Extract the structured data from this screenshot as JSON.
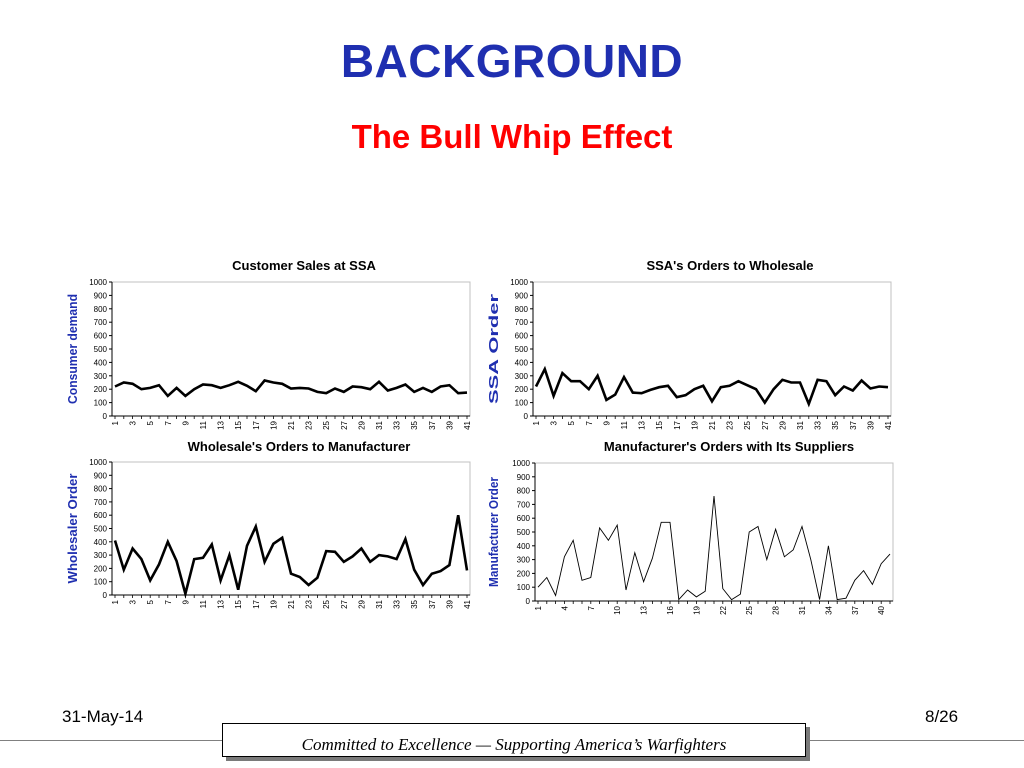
{
  "slide": {
    "title": "BACKGROUND",
    "subtitle": "The Bull Whip Effect",
    "date": "31-May-14",
    "page": "8/26",
    "footer": "Committed to Excellence — Supporting America’s Warfighters"
  },
  "colors": {
    "title": "#1f2fb0",
    "subtitle": "#ff0000",
    "axis_label": "#1f2fb0",
    "series": "#000000"
  },
  "chart_data": [
    {
      "type": "line",
      "title": "Customer Sales at SSA",
      "xlabel": "",
      "ylabel": "Consumer demand",
      "ylim": [
        0,
        1000
      ],
      "y_ticks": [
        0,
        100,
        200,
        300,
        400,
        500,
        600,
        700,
        800,
        900,
        1000
      ],
      "x": [
        1,
        2,
        3,
        4,
        5,
        6,
        7,
        8,
        9,
        10,
        11,
        12,
        13,
        14,
        15,
        16,
        17,
        18,
        19,
        20,
        21,
        22,
        23,
        24,
        25,
        26,
        27,
        28,
        29,
        30,
        31,
        32,
        33,
        34,
        35,
        36,
        37,
        38,
        39,
        40,
        41
      ],
      "x_tick_labels": [
        "1",
        "3",
        "5",
        "7",
        "9",
        "11",
        "13",
        "15",
        "17",
        "19",
        "21",
        "23",
        "25",
        "27",
        "29",
        "31",
        "33",
        "35",
        "37",
        "39",
        "41"
      ],
      "values": [
        220,
        250,
        240,
        200,
        210,
        230,
        150,
        210,
        150,
        200,
        235,
        230,
        210,
        230,
        255,
        225,
        185,
        265,
        250,
        240,
        205,
        210,
        205,
        180,
        170,
        205,
        180,
        220,
        215,
        200,
        255,
        190,
        210,
        235,
        180,
        210,
        180,
        220,
        230,
        170,
        175
      ],
      "line_width": "heavy"
    },
    {
      "type": "line",
      "title": "SSA's Orders to Wholesale",
      "xlabel": "",
      "ylabel": "SSA Order",
      "ylim": [
        0,
        1000
      ],
      "y_ticks": [
        0,
        100,
        200,
        300,
        400,
        500,
        600,
        700,
        800,
        900,
        1000
      ],
      "x": [
        1,
        2,
        3,
        4,
        5,
        6,
        7,
        8,
        9,
        10,
        11,
        12,
        13,
        14,
        15,
        16,
        17,
        18,
        19,
        20,
        21,
        22,
        23,
        24,
        25,
        26,
        27,
        28,
        29,
        30,
        31,
        32,
        33,
        34,
        35,
        36,
        37,
        38,
        39,
        40,
        41
      ],
      "x_tick_labels": [
        "1",
        "3",
        "5",
        "7",
        "9",
        "11",
        "13",
        "15",
        "17",
        "19",
        "21",
        "23",
        "25",
        "27",
        "29",
        "31",
        "33",
        "35",
        "37",
        "39",
        "41"
      ],
      "values": [
        220,
        350,
        150,
        320,
        260,
        260,
        200,
        300,
        120,
        160,
        290,
        175,
        170,
        195,
        215,
        225,
        140,
        155,
        200,
        225,
        110,
        215,
        225,
        260,
        230,
        200,
        100,
        200,
        270,
        250,
        250,
        90,
        270,
        260,
        155,
        220,
        190,
        265,
        205,
        220,
        215
      ],
      "line_width": "heavy"
    },
    {
      "type": "line",
      "title": "Wholesale's Orders to Manufacturer",
      "xlabel": "",
      "ylabel": "Wholesaler Order",
      "ylim": [
        0,
        1000
      ],
      "y_ticks": [
        0,
        100,
        200,
        300,
        400,
        500,
        600,
        700,
        800,
        900,
        1000
      ],
      "x": [
        1,
        2,
        3,
        4,
        5,
        6,
        7,
        8,
        9,
        10,
        11,
        12,
        13,
        14,
        15,
        16,
        17,
        18,
        19,
        20,
        21,
        22,
        23,
        24,
        25,
        26,
        27,
        28,
        29,
        30,
        31,
        32,
        33,
        34,
        35,
        36,
        37,
        38,
        39,
        40,
        41
      ],
      "x_tick_labels": [
        "1",
        "3",
        "5",
        "7",
        "9",
        "11",
        "13",
        "15",
        "17",
        "19",
        "21",
        "23",
        "25",
        "27",
        "29",
        "31",
        "33",
        "35",
        "37",
        "39",
        "41"
      ],
      "values": [
        410,
        190,
        350,
        270,
        110,
        230,
        400,
        255,
        10,
        270,
        280,
        380,
        110,
        300,
        40,
        370,
        515,
        250,
        385,
        430,
        160,
        135,
        75,
        130,
        330,
        325,
        250,
        290,
        350,
        250,
        300,
        290,
        270,
        420,
        190,
        75,
        160,
        180,
        225,
        600,
        185
      ],
      "line_width": "heavy"
    },
    {
      "type": "line",
      "title": "Manufacturer's Orders with Its Suppliers",
      "xlabel": "",
      "ylabel": "Manufacturer Order",
      "ylim": [
        0,
        1000
      ],
      "y_ticks": [
        0,
        100,
        200,
        300,
        400,
        500,
        600,
        700,
        800,
        900,
        1000
      ],
      "x": [
        1,
        2,
        3,
        4,
        5,
        6,
        7,
        8,
        9,
        10,
        11,
        12,
        13,
        14,
        15,
        16,
        17,
        18,
        19,
        20,
        21,
        22,
        23,
        24,
        25,
        26,
        27,
        28,
        29,
        30,
        31,
        32,
        33,
        34,
        35,
        36,
        37,
        38,
        39,
        40,
        41
      ],
      "x_tick_labels": [
        "1",
        "4",
        "7",
        "10",
        "13",
        "16",
        "19",
        "22",
        "25",
        "28",
        "31",
        "34",
        "37",
        "40"
      ],
      "values": [
        100,
        170,
        40,
        320,
        440,
        150,
        170,
        530,
        440,
        550,
        80,
        350,
        140,
        310,
        570,
        570,
        10,
        80,
        30,
        70,
        760,
        90,
        10,
        50,
        500,
        540,
        300,
        520,
        320,
        370,
        540,
        300,
        10,
        400,
        10,
        20,
        150,
        220,
        120,
        270,
        340
      ],
      "line_width": "thin"
    }
  ]
}
